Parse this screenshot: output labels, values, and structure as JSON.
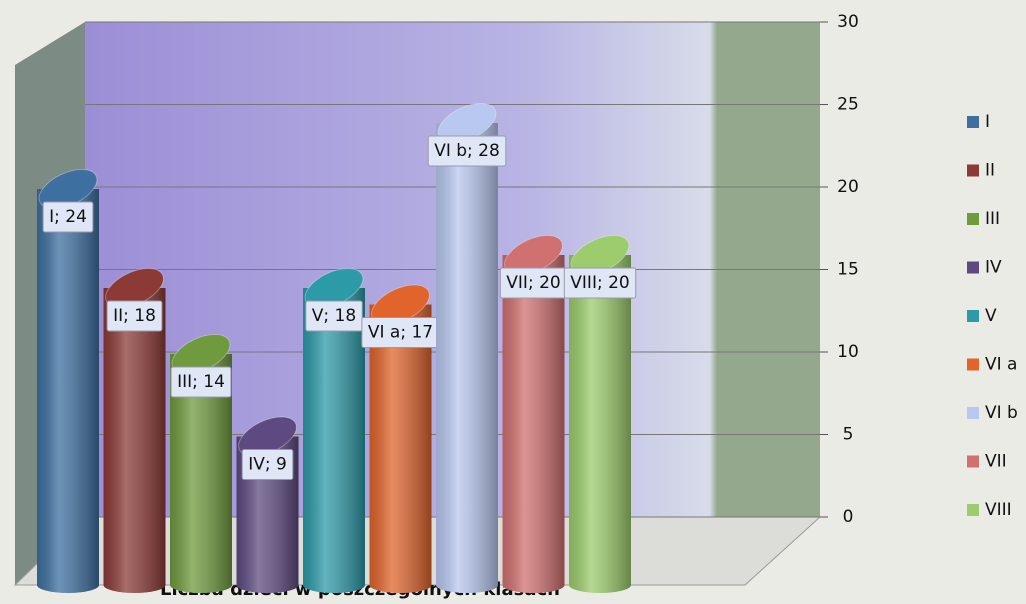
{
  "chart_data": {
    "type": "bar",
    "xlabel": "Liczba dzieci w poszczególnych klasach",
    "categories": [
      "I",
      "II",
      "III",
      "IV",
      "V",
      "VI a",
      "VI b",
      "VII",
      "VIII"
    ],
    "values": [
      24,
      18,
      14,
      9,
      18,
      17,
      28,
      20,
      20
    ],
    "value_labels": [
      "I; 24",
      "II; 18",
      "III; 14",
      "IV; 9",
      "V; 18",
      "VI a; 17",
      "VI b; 28",
      "VII; 20",
      "VIII; 20"
    ],
    "colors": [
      "#3d6fa0",
      "#8b3a36",
      "#6f9a3e",
      "#5e4a80",
      "#2d9aa8",
      "#e0642c",
      "#b8c8f0",
      "#d07070",
      "#9ccc6c"
    ],
    "ylim": [
      0,
      30
    ],
    "yticks": [
      0,
      5,
      10,
      15,
      20,
      25,
      30
    ],
    "grid": true,
    "legend": "right"
  }
}
